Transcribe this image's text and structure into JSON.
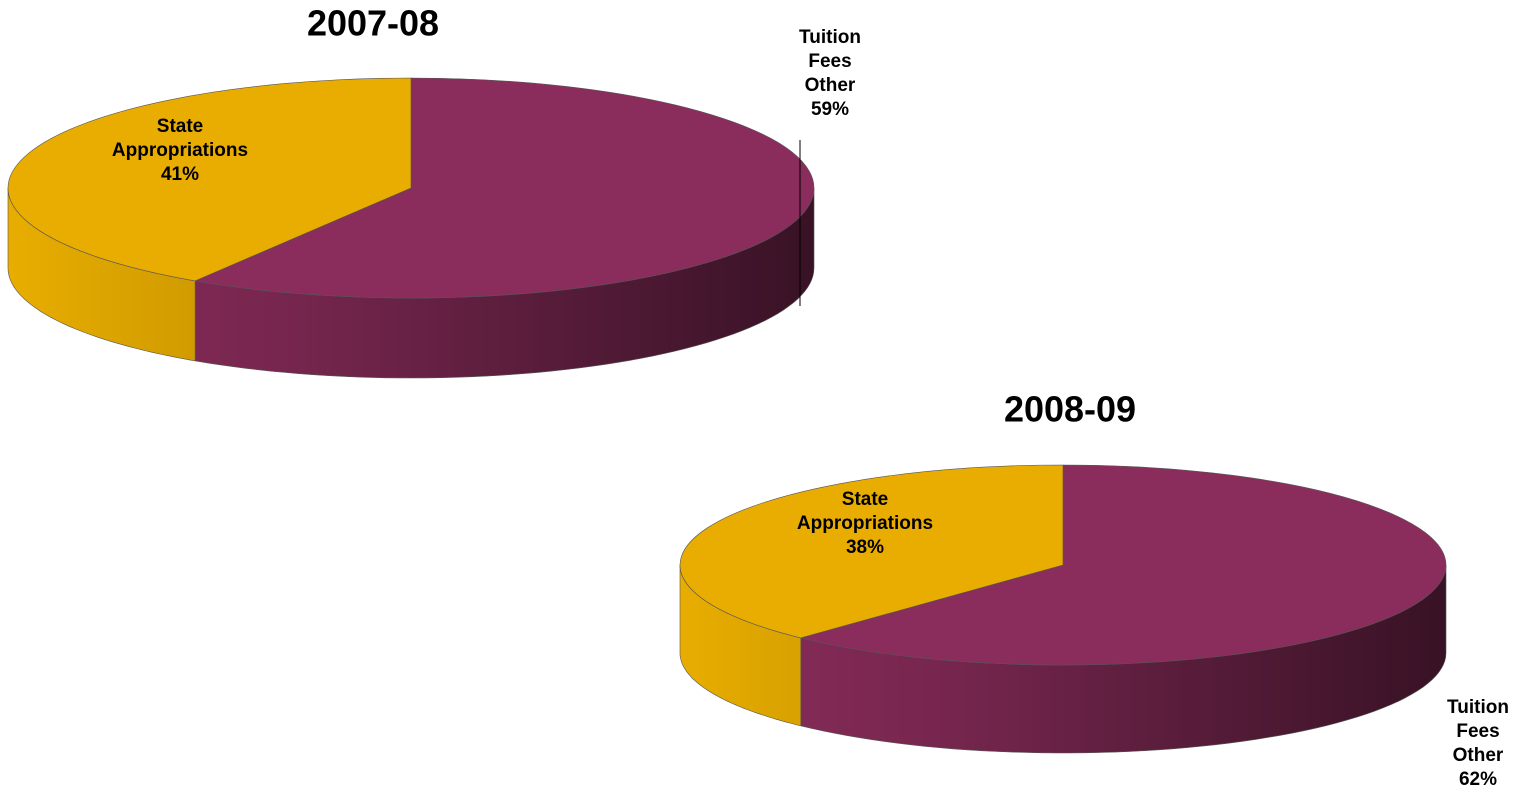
{
  "chart_data": [
    {
      "type": "pie",
      "title": "2007-08",
      "categories": [
        "State Appropriations",
        "Tuition Fees Other"
      ],
      "values": [
        41,
        59
      ],
      "value_labels": [
        "41%",
        "59%"
      ],
      "colors": [
        "#e8ad00",
        "#8b2d5c"
      ]
    },
    {
      "type": "pie",
      "title": "2008-09",
      "categories": [
        "State Appropriations",
        "Tuition Fees Other"
      ],
      "values": [
        38,
        62
      ],
      "value_labels": [
        "38%",
        "62%"
      ],
      "colors": [
        "#e8ad00",
        "#8b2d5c"
      ]
    }
  ]
}
